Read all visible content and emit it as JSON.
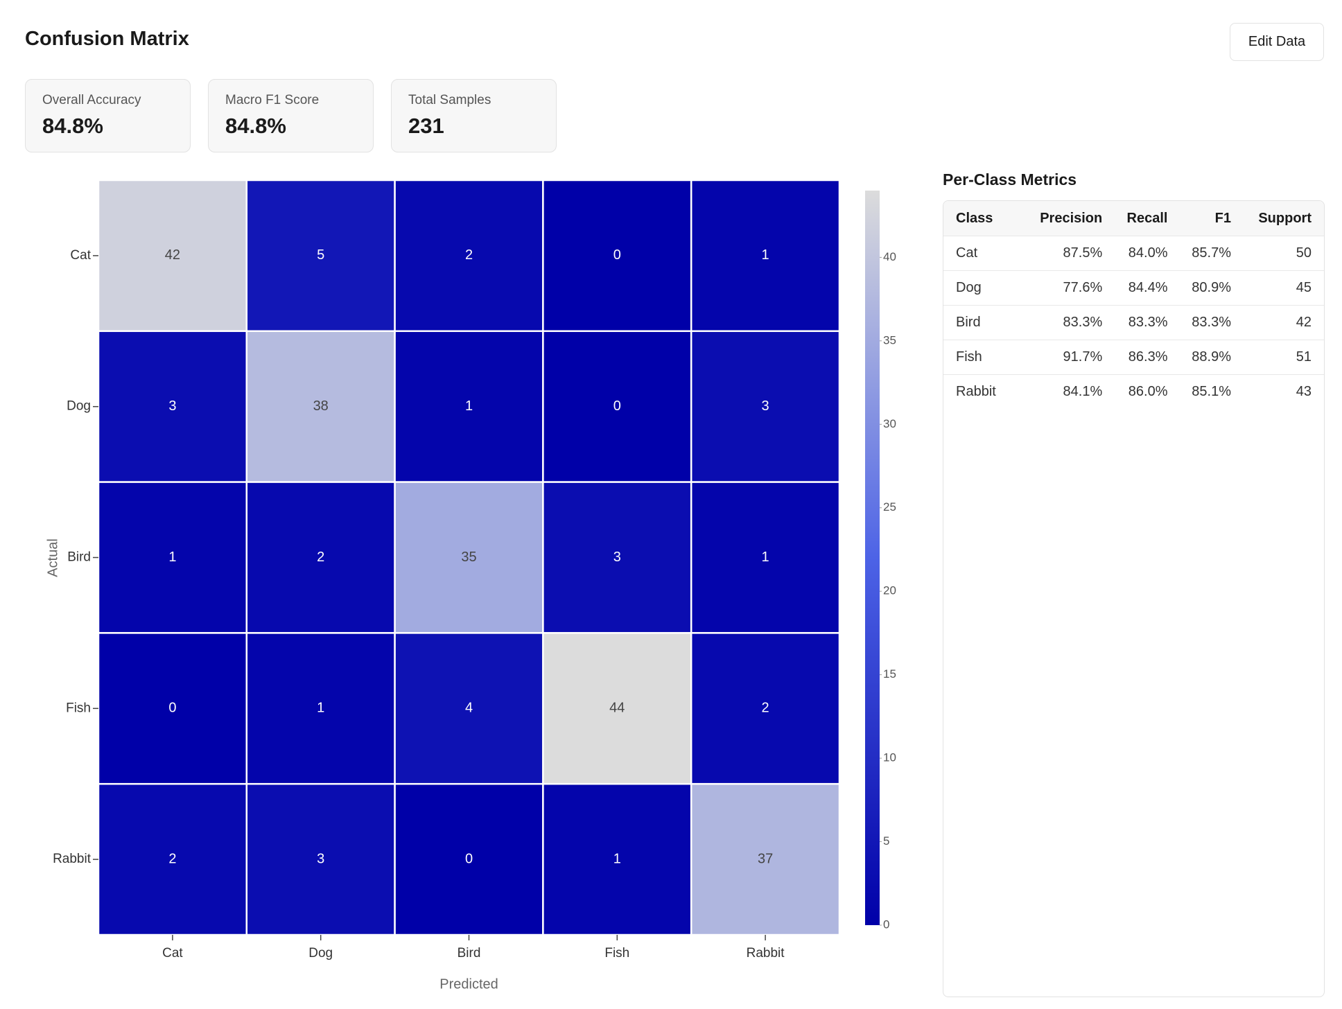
{
  "header": {
    "title": "Confusion Matrix",
    "button": "Edit Data"
  },
  "metrics": [
    {
      "label": "Overall Accuracy",
      "value": "84.8%"
    },
    {
      "label": "Macro F1 Score",
      "value": "84.8%"
    },
    {
      "label": "Total Samples",
      "value": "231"
    }
  ],
  "chart_data": {
    "type": "heatmap",
    "x_label": "Predicted",
    "y_label": "Actual",
    "x_categories": [
      "Cat",
      "Dog",
      "Bird",
      "Fish",
      "Rabbit"
    ],
    "y_categories": [
      "Cat",
      "Dog",
      "Bird",
      "Fish",
      "Rabbit"
    ],
    "values": [
      [
        42,
        5,
        2,
        0,
        1
      ],
      [
        3,
        38,
        1,
        0,
        3
      ],
      [
        1,
        2,
        35,
        3,
        1
      ],
      [
        0,
        1,
        4,
        44,
        2
      ],
      [
        2,
        3,
        0,
        1,
        37
      ]
    ],
    "zlim": [
      0,
      44
    ],
    "zticks": [
      0,
      5,
      10,
      15,
      20,
      25,
      30,
      35,
      40
    ],
    "colors": [
      "#0000a8",
      "#4d63e6",
      "#dcdcdc"
    ]
  },
  "table": {
    "title": "Per-Class Metrics",
    "columns": [
      "Class",
      "Precision",
      "Recall",
      "F1",
      "Support"
    ],
    "rows": [
      [
        "Cat",
        "87.5%",
        "84.0%",
        "85.7%",
        "50"
      ],
      [
        "Dog",
        "77.6%",
        "84.4%",
        "80.9%",
        "45"
      ],
      [
        "Bird",
        "83.3%",
        "83.3%",
        "83.3%",
        "42"
      ],
      [
        "Fish",
        "91.7%",
        "86.3%",
        "88.9%",
        "51"
      ],
      [
        "Rabbit",
        "84.1%",
        "86.0%",
        "85.1%",
        "43"
      ]
    ]
  }
}
